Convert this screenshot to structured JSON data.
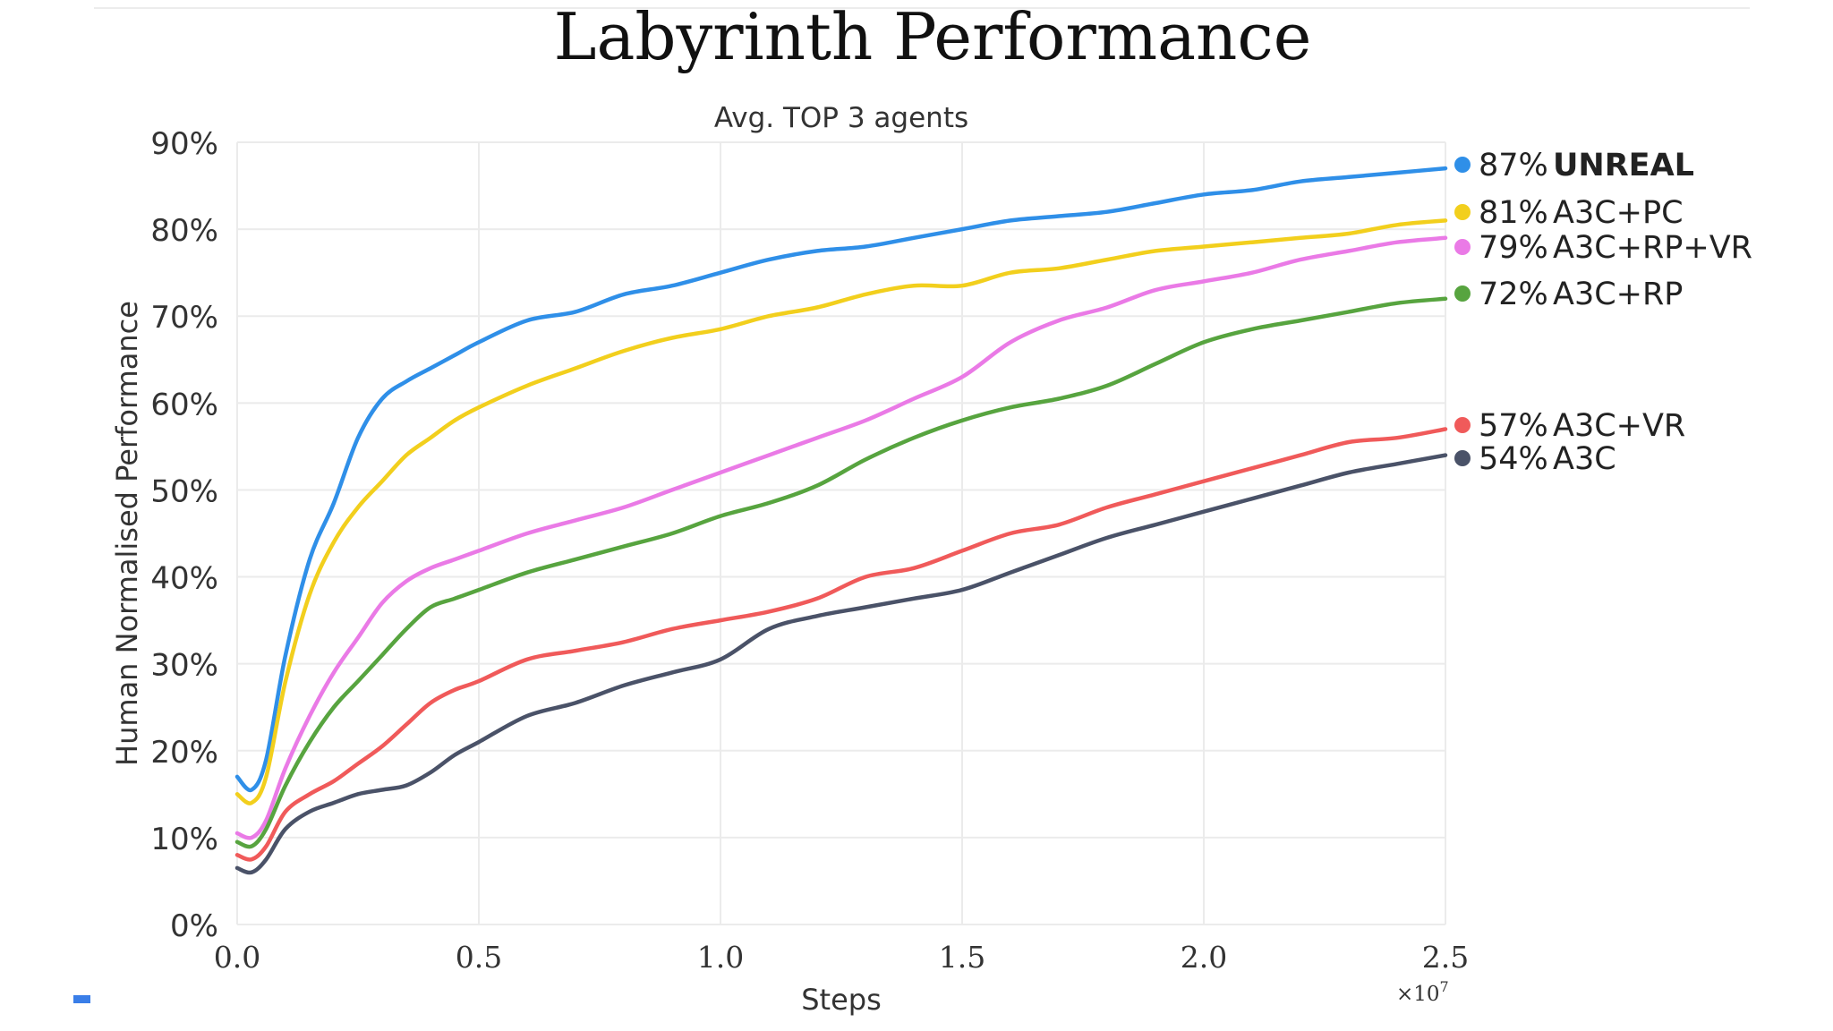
{
  "page": {
    "title": "Labyrinth Performance",
    "subtitle": "Avg. TOP 3 agents"
  },
  "chart_data": {
    "type": "line",
    "title": "Labyrinth Performance",
    "subtitle": "Avg. TOP 3 agents",
    "xlabel": "Steps",
    "ylabel": "Human Normalised Performance",
    "x_multiplier_label": "×10^7",
    "xlim": [
      0,
      2.5
    ],
    "ylim": [
      0,
      90
    ],
    "x_ticks": [
      0.0,
      0.5,
      1.0,
      1.5,
      2.0,
      2.5
    ],
    "x_tick_labels": [
      "0.0",
      "0.5",
      "1.0",
      "1.5",
      "2.0",
      "2.5"
    ],
    "y_ticks": [
      0,
      10,
      20,
      30,
      40,
      50,
      60,
      70,
      80,
      90
    ],
    "y_tick_labels": [
      "0%",
      "10%",
      "20%",
      "30%",
      "40%",
      "50%",
      "60%",
      "70%",
      "80%",
      "90%"
    ],
    "grid": true,
    "legend_placement": "right",
    "series": [
      {
        "name": "UNREAL",
        "final_label": "87%",
        "color": "#2f8fe8",
        "bold": true,
        "x": [
          0,
          0.03,
          0.06,
          0.1,
          0.15,
          0.2,
          0.25,
          0.3,
          0.35,
          0.4,
          0.45,
          0.5,
          0.6,
          0.7,
          0.8,
          0.9,
          1.0,
          1.1,
          1.2,
          1.3,
          1.4,
          1.5,
          1.6,
          1.7,
          1.8,
          1.9,
          2.0,
          2.1,
          2.2,
          2.3,
          2.4,
          2.5
        ],
        "y": [
          17,
          15.5,
          19,
          31,
          42,
          48.5,
          56,
          60.5,
          62.5,
          64,
          65.5,
          67,
          69.5,
          70.5,
          72.5,
          73.5,
          75,
          76.5,
          77.5,
          78,
          79,
          80,
          81,
          81.5,
          82,
          83,
          84,
          84.5,
          85.5,
          86,
          86.5,
          87
        ]
      },
      {
        "name": "A3C+PC",
        "final_label": "81%",
        "color": "#f2cf1d",
        "bold": false,
        "x": [
          0,
          0.03,
          0.06,
          0.1,
          0.15,
          0.2,
          0.25,
          0.3,
          0.35,
          0.4,
          0.45,
          0.5,
          0.6,
          0.7,
          0.8,
          0.9,
          1.0,
          1.1,
          1.2,
          1.3,
          1.4,
          1.5,
          1.6,
          1.7,
          1.8,
          1.9,
          2.0,
          2.1,
          2.2,
          2.3,
          2.4,
          2.5
        ],
        "y": [
          15,
          14,
          17,
          28,
          38,
          44,
          48,
          51,
          54,
          56,
          58,
          59.5,
          62,
          64,
          66,
          67.5,
          68.5,
          70,
          71,
          72.5,
          73.5,
          73.5,
          75,
          75.5,
          76.5,
          77.5,
          78,
          78.5,
          79,
          79.5,
          80.5,
          81
        ]
      },
      {
        "name": "A3C+RP+VR",
        "final_label": "79%",
        "color": "#ea7ae6",
        "bold": false,
        "x": [
          0,
          0.03,
          0.06,
          0.1,
          0.15,
          0.2,
          0.25,
          0.3,
          0.35,
          0.4,
          0.45,
          0.5,
          0.6,
          0.7,
          0.8,
          0.9,
          1.0,
          1.1,
          1.2,
          1.3,
          1.4,
          1.5,
          1.6,
          1.7,
          1.8,
          1.9,
          2.0,
          2.1,
          2.2,
          2.3,
          2.4,
          2.5
        ],
        "y": [
          10.5,
          10,
          12,
          18,
          24,
          29,
          33,
          37,
          39.5,
          41,
          42,
          43,
          45,
          46.5,
          48,
          50,
          52,
          54,
          56,
          58,
          60.5,
          63,
          67,
          69.5,
          71,
          73,
          74,
          75,
          76.5,
          77.5,
          78.5,
          79
        ]
      },
      {
        "name": "A3C+RP",
        "final_label": "72%",
        "color": "#57a43f",
        "bold": false,
        "x": [
          0,
          0.03,
          0.06,
          0.1,
          0.15,
          0.2,
          0.25,
          0.3,
          0.35,
          0.4,
          0.45,
          0.5,
          0.6,
          0.7,
          0.8,
          0.9,
          1.0,
          1.1,
          1.2,
          1.3,
          1.4,
          1.5,
          1.6,
          1.7,
          1.8,
          1.9,
          2.0,
          2.1,
          2.2,
          2.3,
          2.4,
          2.5
        ],
        "y": [
          9.5,
          9,
          11,
          16,
          21,
          25,
          28,
          31,
          34,
          36.5,
          37.5,
          38.5,
          40.5,
          42,
          43.5,
          45,
          47,
          48.5,
          50.5,
          53.5,
          56,
          58,
          59.5,
          60.5,
          62,
          64.5,
          67,
          68.5,
          69.5,
          70.5,
          71.5,
          72
        ]
      },
      {
        "name": "A3C+VR",
        "final_label": "57%",
        "color": "#f05a5a",
        "bold": false,
        "x": [
          0,
          0.03,
          0.06,
          0.1,
          0.15,
          0.2,
          0.25,
          0.3,
          0.35,
          0.4,
          0.45,
          0.5,
          0.6,
          0.7,
          0.8,
          0.9,
          1.0,
          1.1,
          1.2,
          1.3,
          1.4,
          1.5,
          1.6,
          1.7,
          1.8,
          1.9,
          2.0,
          2.1,
          2.2,
          2.3,
          2.4,
          2.5
        ],
        "y": [
          8,
          7.5,
          9,
          13,
          15,
          16.5,
          18.5,
          20.5,
          23,
          25.5,
          27,
          28,
          30.5,
          31.5,
          32.5,
          34,
          35,
          36,
          37.5,
          40,
          41,
          43,
          45,
          46,
          48,
          49.5,
          51,
          52.5,
          54,
          55.5,
          56,
          57
        ]
      },
      {
        "name": "A3C",
        "final_label": "54%",
        "color": "#4a5268",
        "bold": false,
        "x": [
          0,
          0.03,
          0.06,
          0.1,
          0.15,
          0.2,
          0.25,
          0.3,
          0.35,
          0.4,
          0.45,
          0.5,
          0.6,
          0.7,
          0.8,
          0.9,
          1.0,
          1.1,
          1.2,
          1.3,
          1.4,
          1.5,
          1.6,
          1.7,
          1.8,
          1.9,
          2.0,
          2.1,
          2.2,
          2.3,
          2.4,
          2.5
        ],
        "y": [
          6.5,
          6,
          7.5,
          11,
          13,
          14,
          15,
          15.5,
          16,
          17.5,
          19.5,
          21,
          24,
          25.5,
          27.5,
          29,
          30.5,
          34,
          35.5,
          36.5,
          37.5,
          38.5,
          40.5,
          42.5,
          44.5,
          46,
          47.5,
          49,
          50.5,
          52,
          53,
          54
        ]
      }
    ]
  }
}
